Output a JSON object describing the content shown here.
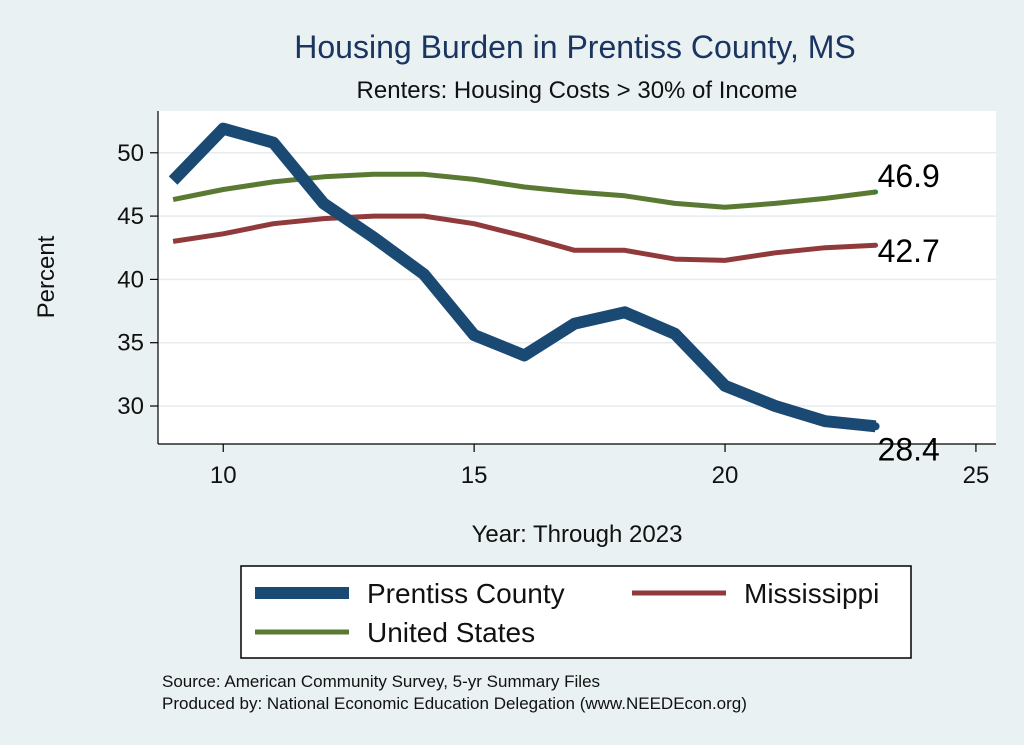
{
  "chart_data": {
    "type": "line",
    "title": "Housing Burden in Prentiss County, MS",
    "subtitle": "Renters: Housing Costs > 30% of Income",
    "xlabel": "Year: Through 2023",
    "ylabel": "Percent",
    "xlim": [
      8.7,
      25.4
    ],
    "ylim": [
      27,
      53.3
    ],
    "xticks": [
      10,
      15,
      20,
      25
    ],
    "yticks": [
      30,
      35,
      40,
      45,
      50
    ],
    "grid": true,
    "legend_position": "bottom",
    "series": [
      {
        "name": "Prentiss County",
        "color": "#1a4a74",
        "x": [
          9,
          10,
          11,
          12,
          13,
          14,
          15,
          16,
          17,
          18,
          19,
          20,
          21,
          22,
          23
        ],
        "y": [
          47.8,
          51.9,
          50.8,
          46.0,
          43.3,
          40.4,
          35.6,
          34.0,
          36.5,
          37.4,
          35.7,
          31.6,
          30.0,
          28.8,
          28.4
        ],
        "end_label": "28.4"
      },
      {
        "name": "Mississippi",
        "color": "#913a3c",
        "x": [
          9,
          10,
          11,
          12,
          13,
          14,
          15,
          16,
          17,
          18,
          19,
          20,
          21,
          22,
          23
        ],
        "y": [
          43.0,
          43.6,
          44.4,
          44.8,
          45.0,
          45.0,
          44.4,
          43.4,
          42.3,
          42.3,
          41.6,
          41.5,
          42.1,
          42.5,
          42.7
        ],
        "end_label": "42.7"
      },
      {
        "name": "United States",
        "color": "#5a7a33",
        "x": [
          9,
          10,
          11,
          12,
          13,
          14,
          15,
          16,
          17,
          18,
          19,
          20,
          21,
          22,
          23
        ],
        "y": [
          46.3,
          47.1,
          47.7,
          48.1,
          48.3,
          48.3,
          47.9,
          47.3,
          46.9,
          46.6,
          46.0,
          45.7,
          46.0,
          46.4,
          46.9
        ],
        "end_label": "46.9"
      }
    ],
    "notes": [
      "Source: American Community Survey, 5-yr Summary Files",
      "Produced by: National Economic Education Delegation (www.NEEDEcon.org)"
    ]
  }
}
